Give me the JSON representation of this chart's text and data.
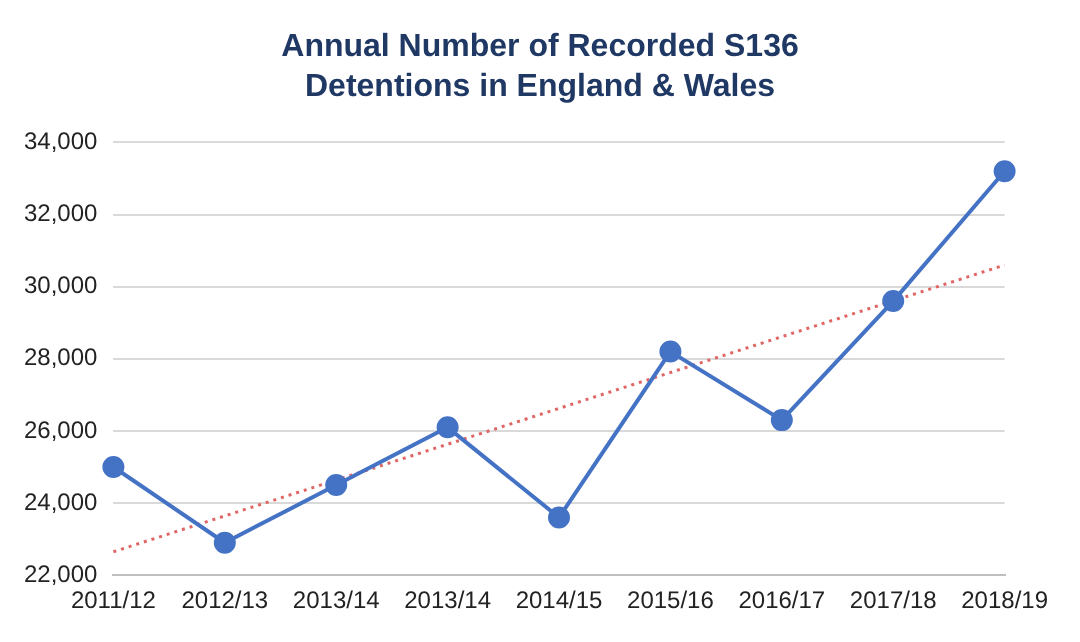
{
  "chart_data": {
    "type": "line",
    "title": "Annual Number of Recorded S136 Detentions in England & Wales",
    "categories": [
      "2011/12",
      "2012/13",
      "2013/14",
      "2013/14",
      "2014/15",
      "2015/16",
      "2016/17",
      "2017/18",
      "2018/19"
    ],
    "series": [
      {
        "color": "#4472c4",
        "values": [
          25000,
          22900,
          24500,
          26100,
          23600,
          28200,
          26300,
          29600,
          33200
        ],
        "marker": "circle",
        "line_style": "solid"
      },
      {
        "type": "line",
        "color": "#e06666",
        "values": [
          22650,
          null,
          null,
          null,
          null,
          null,
          null,
          null,
          30600
        ],
        "marker": "none",
        "line_style": "dotted"
      }
    ],
    "ylim": [
      22000,
      34000
    ],
    "yticks": [
      {
        "value": 22000,
        "label": "22,000"
      },
      {
        "value": 24000,
        "label": "24,000"
      },
      {
        "value": 26000,
        "label": "26,000"
      },
      {
        "value": 28000,
        "label": "28,000"
      },
      {
        "value": 30000,
        "label": "30,000"
      },
      {
        "value": 32000,
        "label": "32,000"
      },
      {
        "value": 34000,
        "label": "34,000"
      }
    ],
    "grid": "y",
    "legend": false
  }
}
